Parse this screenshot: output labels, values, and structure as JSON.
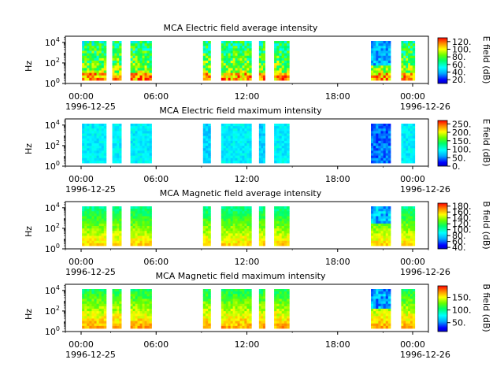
{
  "figure": {
    "start_label": {
      "time": "00:00",
      "date": "1996-12-25"
    },
    "end_label": {
      "time": "00:00",
      "date": "1996-12-26"
    }
  },
  "chart_data": [
    {
      "type": "heatmap",
      "title": "MCA  Electric field average intensity",
      "ylabel": "Hz",
      "colorbar_label": "E field (dB)",
      "x_ticks": [
        "00:00",
        "06:00",
        "12:00",
        "18:00",
        "00:00"
      ],
      "x_range_hours": [
        0,
        24
      ],
      "y_scale": "log",
      "y_ticks": [
        {
          "base": "10",
          "exp": "0"
        },
        {
          "base": "10",
          "exp": "2"
        },
        {
          "base": "10",
          "exp": "4"
        }
      ],
      "colorbar_ticks": [
        "20.",
        "40.",
        "60.",
        "80.",
        "100.",
        "120."
      ],
      "colorbar_range": [
        10,
        130
      ],
      "palette": "avg_e",
      "data_intervals_hours": [
        [
          1.1,
          2.7
        ],
        [
          3.1,
          3.7
        ],
        [
          4.3,
          5.7
        ],
        [
          9.1,
          9.6
        ],
        [
          10.3,
          12.3
        ],
        [
          12.8,
          13.2
        ],
        [
          13.8,
          14.8
        ],
        [
          20.2,
          21.5
        ],
        [
          22.2,
          23.1
        ]
      ]
    },
    {
      "type": "heatmap",
      "title": "MCA  Electric field maximum intensity",
      "ylabel": "Hz",
      "colorbar_label": "E field (dB)",
      "x_ticks": [
        "00:00",
        "06:00",
        "12:00",
        "18:00",
        "00:00"
      ],
      "x_range_hours": [
        0,
        24
      ],
      "y_scale": "log",
      "y_ticks": [
        {
          "base": "10",
          "exp": "0"
        },
        {
          "base": "10",
          "exp": "2"
        },
        {
          "base": "10",
          "exp": "4"
        }
      ],
      "colorbar_ticks": [
        "0.",
        "50.",
        "100.",
        "150.",
        "200.",
        "250."
      ],
      "colorbar_range": [
        0,
        270
      ],
      "palette": "max_e",
      "data_intervals_hours": [
        [
          1.1,
          2.7
        ],
        [
          3.1,
          3.7
        ],
        [
          4.3,
          5.7
        ],
        [
          9.1,
          9.6
        ],
        [
          10.3,
          12.3
        ],
        [
          12.8,
          13.2
        ],
        [
          13.8,
          14.8
        ],
        [
          20.2,
          21.5
        ],
        [
          22.2,
          23.1
        ]
      ]
    },
    {
      "type": "heatmap",
      "title": "MCA  Magnetic field average intensity",
      "ylabel": "Hz",
      "colorbar_label": "B field (dB)",
      "x_ticks": [
        "00:00",
        "06:00",
        "12:00",
        "18:00",
        "00:00"
      ],
      "x_range_hours": [
        0,
        24
      ],
      "y_scale": "log",
      "y_ticks": [
        {
          "base": "10",
          "exp": "0"
        },
        {
          "base": "10",
          "exp": "2"
        },
        {
          "base": "10",
          "exp": "4"
        }
      ],
      "colorbar_ticks": [
        "40.",
        "60.",
        "80.",
        "100.",
        "120.",
        "140.",
        "160.",
        "180."
      ],
      "colorbar_range": [
        35,
        190
      ],
      "palette": "avg_b",
      "data_intervals_hours": [
        [
          1.1,
          2.7
        ],
        [
          3.1,
          3.7
        ],
        [
          4.3,
          5.7
        ],
        [
          9.1,
          9.6
        ],
        [
          10.3,
          12.3
        ],
        [
          12.8,
          13.2
        ],
        [
          13.8,
          14.8
        ],
        [
          20.2,
          21.5
        ],
        [
          22.2,
          23.1
        ]
      ]
    },
    {
      "type": "heatmap",
      "title": "MCA  Magnetic field maximum intensity",
      "ylabel": "Hz",
      "colorbar_label": "B field (dB)",
      "x_ticks": [
        "00:00",
        "06:00",
        "12:00",
        "18:00",
        "00:00"
      ],
      "x_range_hours": [
        0,
        24
      ],
      "y_scale": "log",
      "y_ticks": [
        {
          "base": "10",
          "exp": "0"
        },
        {
          "base": "10",
          "exp": "2"
        },
        {
          "base": "10",
          "exp": "4"
        }
      ],
      "colorbar_ticks": [
        "50.",
        "100.",
        "150."
      ],
      "colorbar_range": [
        15,
        195
      ],
      "palette": "max_b",
      "data_intervals_hours": [
        [
          1.1,
          2.7
        ],
        [
          3.1,
          3.7
        ],
        [
          4.3,
          5.7
        ],
        [
          9.1,
          9.6
        ],
        [
          10.3,
          12.3
        ],
        [
          12.8,
          13.2
        ],
        [
          13.8,
          14.8
        ],
        [
          20.2,
          21.5
        ],
        [
          22.2,
          23.1
        ]
      ]
    }
  ]
}
